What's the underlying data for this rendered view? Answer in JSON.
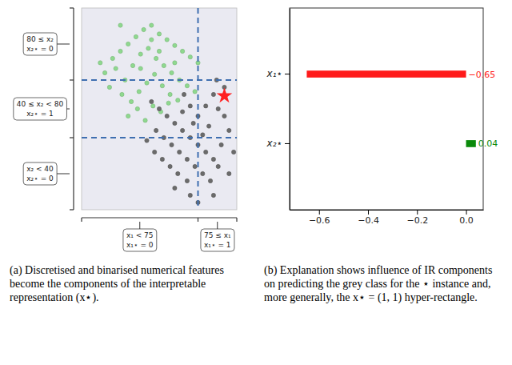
{
  "chart_data": [
    {
      "type": "scatter",
      "xlim": [
        0,
        100
      ],
      "ylim": [
        -10,
        130
      ],
      "tick_labels": false,
      "x_thresholds": [
        75
      ],
      "y_thresholds": [
        40,
        80
      ],
      "line_style": "dashed",
      "x_region_labels": [
        [
          "x₁ < 75",
          "x₁⋆ = 0"
        ],
        [
          "75 ≤ x₁",
          "x₁⋆ = 1"
        ]
      ],
      "y_region_labels": [
        [
          "x₂ < 40",
          "x₂⋆ = 0"
        ],
        [
          "40 ≤ x₂ < 80",
          "x₂⋆ = 1"
        ],
        [
          "80 ≤ x₂",
          "x₂⋆ = 0"
        ]
      ],
      "series": [
        {
          "color": "#8fd88f",
          "marker": "circle",
          "x": [
            20,
            25,
            30,
            35,
            40,
            45,
            50,
            55,
            60,
            65,
            70,
            75,
            15,
            22,
            28,
            33,
            38,
            43,
            48,
            53,
            58,
            63,
            68,
            73,
            18,
            26,
            32,
            37,
            42,
            47,
            52,
            57,
            62,
            30,
            36,
            41,
            46,
            51,
            56,
            12,
            45,
            38,
            60,
            50,
            25
          ],
          "values": [
            95,
            100,
            105,
            110,
            115,
            118,
            112,
            108,
            104,
            100,
            96,
            92,
            85,
            88,
            80,
            90,
            98,
            102,
            95,
            90,
            85,
            80,
            76,
            72,
            75,
            70,
            65,
            72,
            78,
            84,
            76,
            70,
            66,
            55,
            60,
            52,
            62,
            58,
            64,
            92,
            108,
            88,
            92,
            100,
            118
          ]
        },
        {
          "color": "#6b6b6b",
          "marker": "circle",
          "x": [
            45,
            50,
            55,
            60,
            65,
            70,
            75,
            80,
            85,
            48,
            53,
            58,
            63,
            68,
            73,
            78,
            83,
            88,
            90,
            95,
            92,
            88,
            85,
            80,
            75,
            70,
            65,
            82,
            78,
            72,
            68,
            62,
            57,
            52,
            47,
            42,
            60,
            70,
            75,
            85,
            95,
            98,
            92,
            87,
            66
          ],
          "values": [
            65,
            60,
            55,
            50,
            45,
            40,
            35,
            30,
            25,
            45,
            40,
            35,
            30,
            25,
            20,
            15,
            10,
            20,
            35,
            45,
            55,
            60,
            70,
            62,
            55,
            62,
            58,
            48,
            42,
            50,
            10,
            15,
            20,
            25,
            30,
            38,
            5,
            0,
            -5,
            0,
            15,
            30,
            75,
            80,
            70
          ]
        },
        {
          "color": "#ff2020",
          "marker": "star",
          "x": [
            92
          ],
          "values": [
            69
          ]
        }
      ],
      "caption": "(a) Discretised and binarised numerical features become the components of the interpretable representation (x⋆)."
    },
    {
      "type": "bar",
      "orientation": "horizontal",
      "categories": [
        "x₁⋆",
        "x₂⋆"
      ],
      "values": [
        -0.65,
        0.04
      ],
      "colors": [
        "#ff1a1a",
        "#0a8a0a"
      ],
      "xlim": [
        -0.72,
        0.07
      ],
      "xticks": [
        {
          "value": -0.6,
          "label": "−0.6"
        },
        {
          "value": -0.4,
          "label": "−0.4"
        },
        {
          "value": -0.2,
          "label": "−0.2"
        },
        {
          "value": 0,
          "label": "0.0"
        }
      ],
      "data_labels": true,
      "value_labels": [
        "−0.65",
        "0.04"
      ],
      "caption": "(b) Explanation shows influence of IR components on predicting the grey class for the ⋆ instance and, more generally, the x⋆ = (1, 1) hyper-rectangle."
    }
  ]
}
